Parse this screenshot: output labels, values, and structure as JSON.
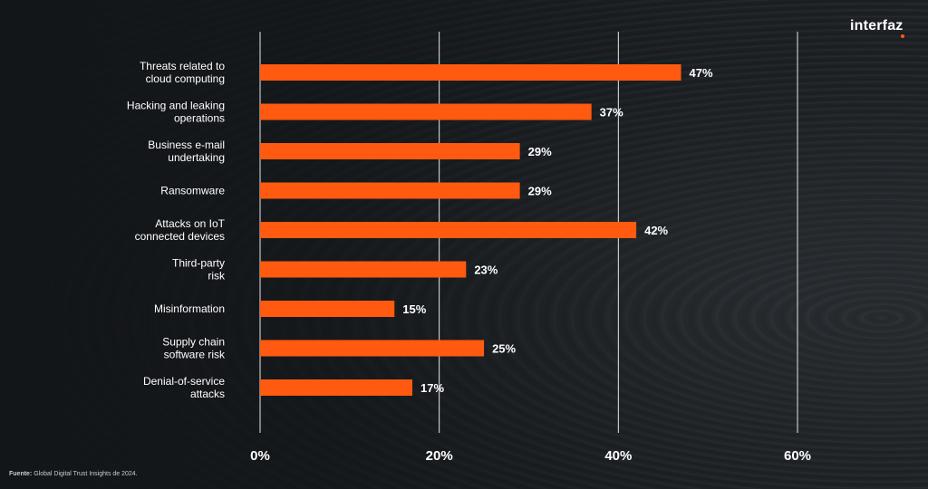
{
  "brand": {
    "name": "interfaz",
    "accent": "#ff5a10"
  },
  "source": {
    "label": "Fuente:",
    "text": "Global Digital Trust Insights de 2024."
  },
  "chart_data": {
    "type": "bar",
    "orientation": "horizontal",
    "categories": [
      "Threats related to\ncloud computing",
      "Hacking and leaking\noperations",
      "Business e-mail\nundertaking",
      "Ransomware",
      "Attacks on IoT\nconnected devices",
      "Third-party\nrisk",
      "Misinformation",
      "Supply chain\nsoftware risk",
      "Denial-of-service\nattacks"
    ],
    "values": [
      47,
      37,
      29,
      29,
      42,
      23,
      15,
      25,
      17
    ],
    "value_labels": [
      "47%",
      "37%",
      "29%",
      "29%",
      "42%",
      "23%",
      "15%",
      "25%",
      "17%"
    ],
    "xlim": [
      0,
      60
    ],
    "xticks": [
      0,
      20,
      40,
      60
    ],
    "xtick_labels": [
      "0%",
      "20%",
      "40%",
      "60%"
    ],
    "grid": true,
    "bar_color": "#ff5a10",
    "title": "",
    "xlabel": "",
    "ylabel": ""
  }
}
